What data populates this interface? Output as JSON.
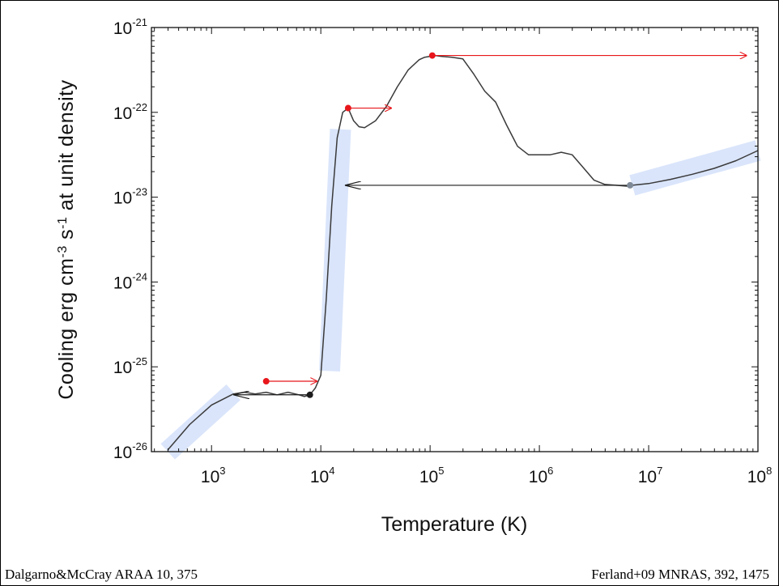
{
  "chart_data": {
    "type": "line",
    "title": "",
    "xlabel": "Temperature (K)",
    "ylabel": {
      "parts": [
        {
          "text": "Cooling  erg cm"
        },
        {
          "text": "-3",
          "sup": true
        },
        {
          "text": " s"
        },
        {
          "text": "-1",
          "sup": true
        },
        {
          "text": " at unit density"
        }
      ]
    },
    "x_scale": "log",
    "y_scale": "log",
    "xlim_log10": [
      2.45,
      8.0
    ],
    "ylim_log10": [
      -26,
      -21
    ],
    "x_ticks": [
      {
        "base": "10",
        "exp": "3"
      },
      {
        "base": "10",
        "exp": "4"
      },
      {
        "base": "10",
        "exp": "5"
      },
      {
        "base": "10",
        "exp": "6"
      },
      {
        "base": "10",
        "exp": "7"
      },
      {
        "base": "10",
        "exp": "8"
      }
    ],
    "y_ticks": [
      {
        "base": "10",
        "exp": "-21"
      },
      {
        "base": "10",
        "exp": "-22"
      },
      {
        "base": "10",
        "exp": "-23"
      },
      {
        "base": "10",
        "exp": "-24"
      },
      {
        "base": "10",
        "exp": "-25"
      },
      {
        "base": "10",
        "exp": "-26"
      }
    ],
    "series": [
      {
        "color": "#3a3a3a",
        "x_log10": [
          2.6,
          2.8,
          3.0,
          3.2,
          3.3,
          3.4,
          3.5,
          3.6,
          3.7,
          3.8,
          3.85,
          3.9,
          3.95,
          4.0,
          4.05,
          4.1,
          4.15,
          4.2,
          4.25,
          4.3,
          4.35,
          4.4,
          4.5,
          4.6,
          4.7,
          4.8,
          4.9,
          4.95,
          5.0,
          5.05,
          5.1,
          5.2,
          5.3,
          5.4,
          5.5,
          5.6,
          5.7,
          5.8,
          5.9,
          6.0,
          6.1,
          6.2,
          6.3,
          6.4,
          6.5,
          6.6,
          6.7,
          6.8,
          6.85,
          7.0,
          7.2,
          7.4,
          7.6,
          7.8,
          8.0
        ],
        "y_log10": [
          -25.98,
          -25.68,
          -25.45,
          -25.32,
          -25.3,
          -25.32,
          -25.3,
          -25.33,
          -25.3,
          -25.33,
          -25.35,
          -25.33,
          -25.25,
          -25.1,
          -24.2,
          -23.1,
          -22.3,
          -22.0,
          -21.95,
          -22.1,
          -22.17,
          -22.18,
          -22.1,
          -21.93,
          -21.7,
          -21.5,
          -21.38,
          -21.35,
          -21.34,
          -21.33,
          -21.34,
          -21.35,
          -21.37,
          -21.55,
          -21.75,
          -21.88,
          -22.15,
          -22.4,
          -22.5,
          -22.5,
          -22.5,
          -22.47,
          -22.5,
          -22.65,
          -22.8,
          -22.85,
          -22.86,
          -22.87,
          -22.86,
          -22.84,
          -22.79,
          -22.73,
          -22.66,
          -22.57,
          -22.45
        ]
      }
    ],
    "highlight_bands": [
      {
        "color": "#d6e3fb",
        "x_log10": [
          2.6,
          3.2
        ],
        "y_log10": [
          -26.0,
          -25.3
        ]
      },
      {
        "color": "#d6e3fb",
        "x_log10": [
          4.08,
          4.18
        ],
        "y_log10": [
          -25.05,
          -22.2
        ]
      },
      {
        "color": "#d6e3fb",
        "x_log10": [
          6.85,
          8.0
        ],
        "y_log10": [
          -22.86,
          -22.45
        ]
      }
    ],
    "markers": [
      {
        "x_log10": 3.5,
        "y_log10": -25.17,
        "color": "#e8161b"
      },
      {
        "x_log10": 3.9,
        "y_log10": -25.33,
        "color": "#1c1c1c"
      },
      {
        "x_log10": 4.25,
        "y_log10": -21.95,
        "color": "#e8161b"
      },
      {
        "x_log10": 5.02,
        "y_log10": -21.33,
        "color": "#e8161b"
      },
      {
        "x_log10": 6.83,
        "y_log10": -22.86,
        "color": "#7f8a99"
      }
    ],
    "arrows": [
      {
        "from": [
          3.5,
          -25.17
        ],
        "to": [
          3.97,
          -25.17
        ],
        "color": "#e8161b"
      },
      {
        "from": [
          3.9,
          -25.33
        ],
        "to": [
          3.2,
          -25.33
        ],
        "color": "#1c1c1c"
      },
      {
        "from": [
          4.25,
          -21.95
        ],
        "to": [
          4.65,
          -21.95
        ],
        "color": "#e8161b"
      },
      {
        "from": [
          5.02,
          -21.33
        ],
        "to": [
          7.9,
          -21.33
        ],
        "color": "#e8161b"
      },
      {
        "from": [
          6.83,
          -22.86
        ],
        "to": [
          4.22,
          -22.86
        ],
        "color": "#1c1c1c"
      }
    ],
    "grid": false
  },
  "footer": {
    "left_citation": "Dalgarno&McCray ARAA 10, 375",
    "right_citation": "Ferland+09 MNRAS, 392, 1475"
  }
}
